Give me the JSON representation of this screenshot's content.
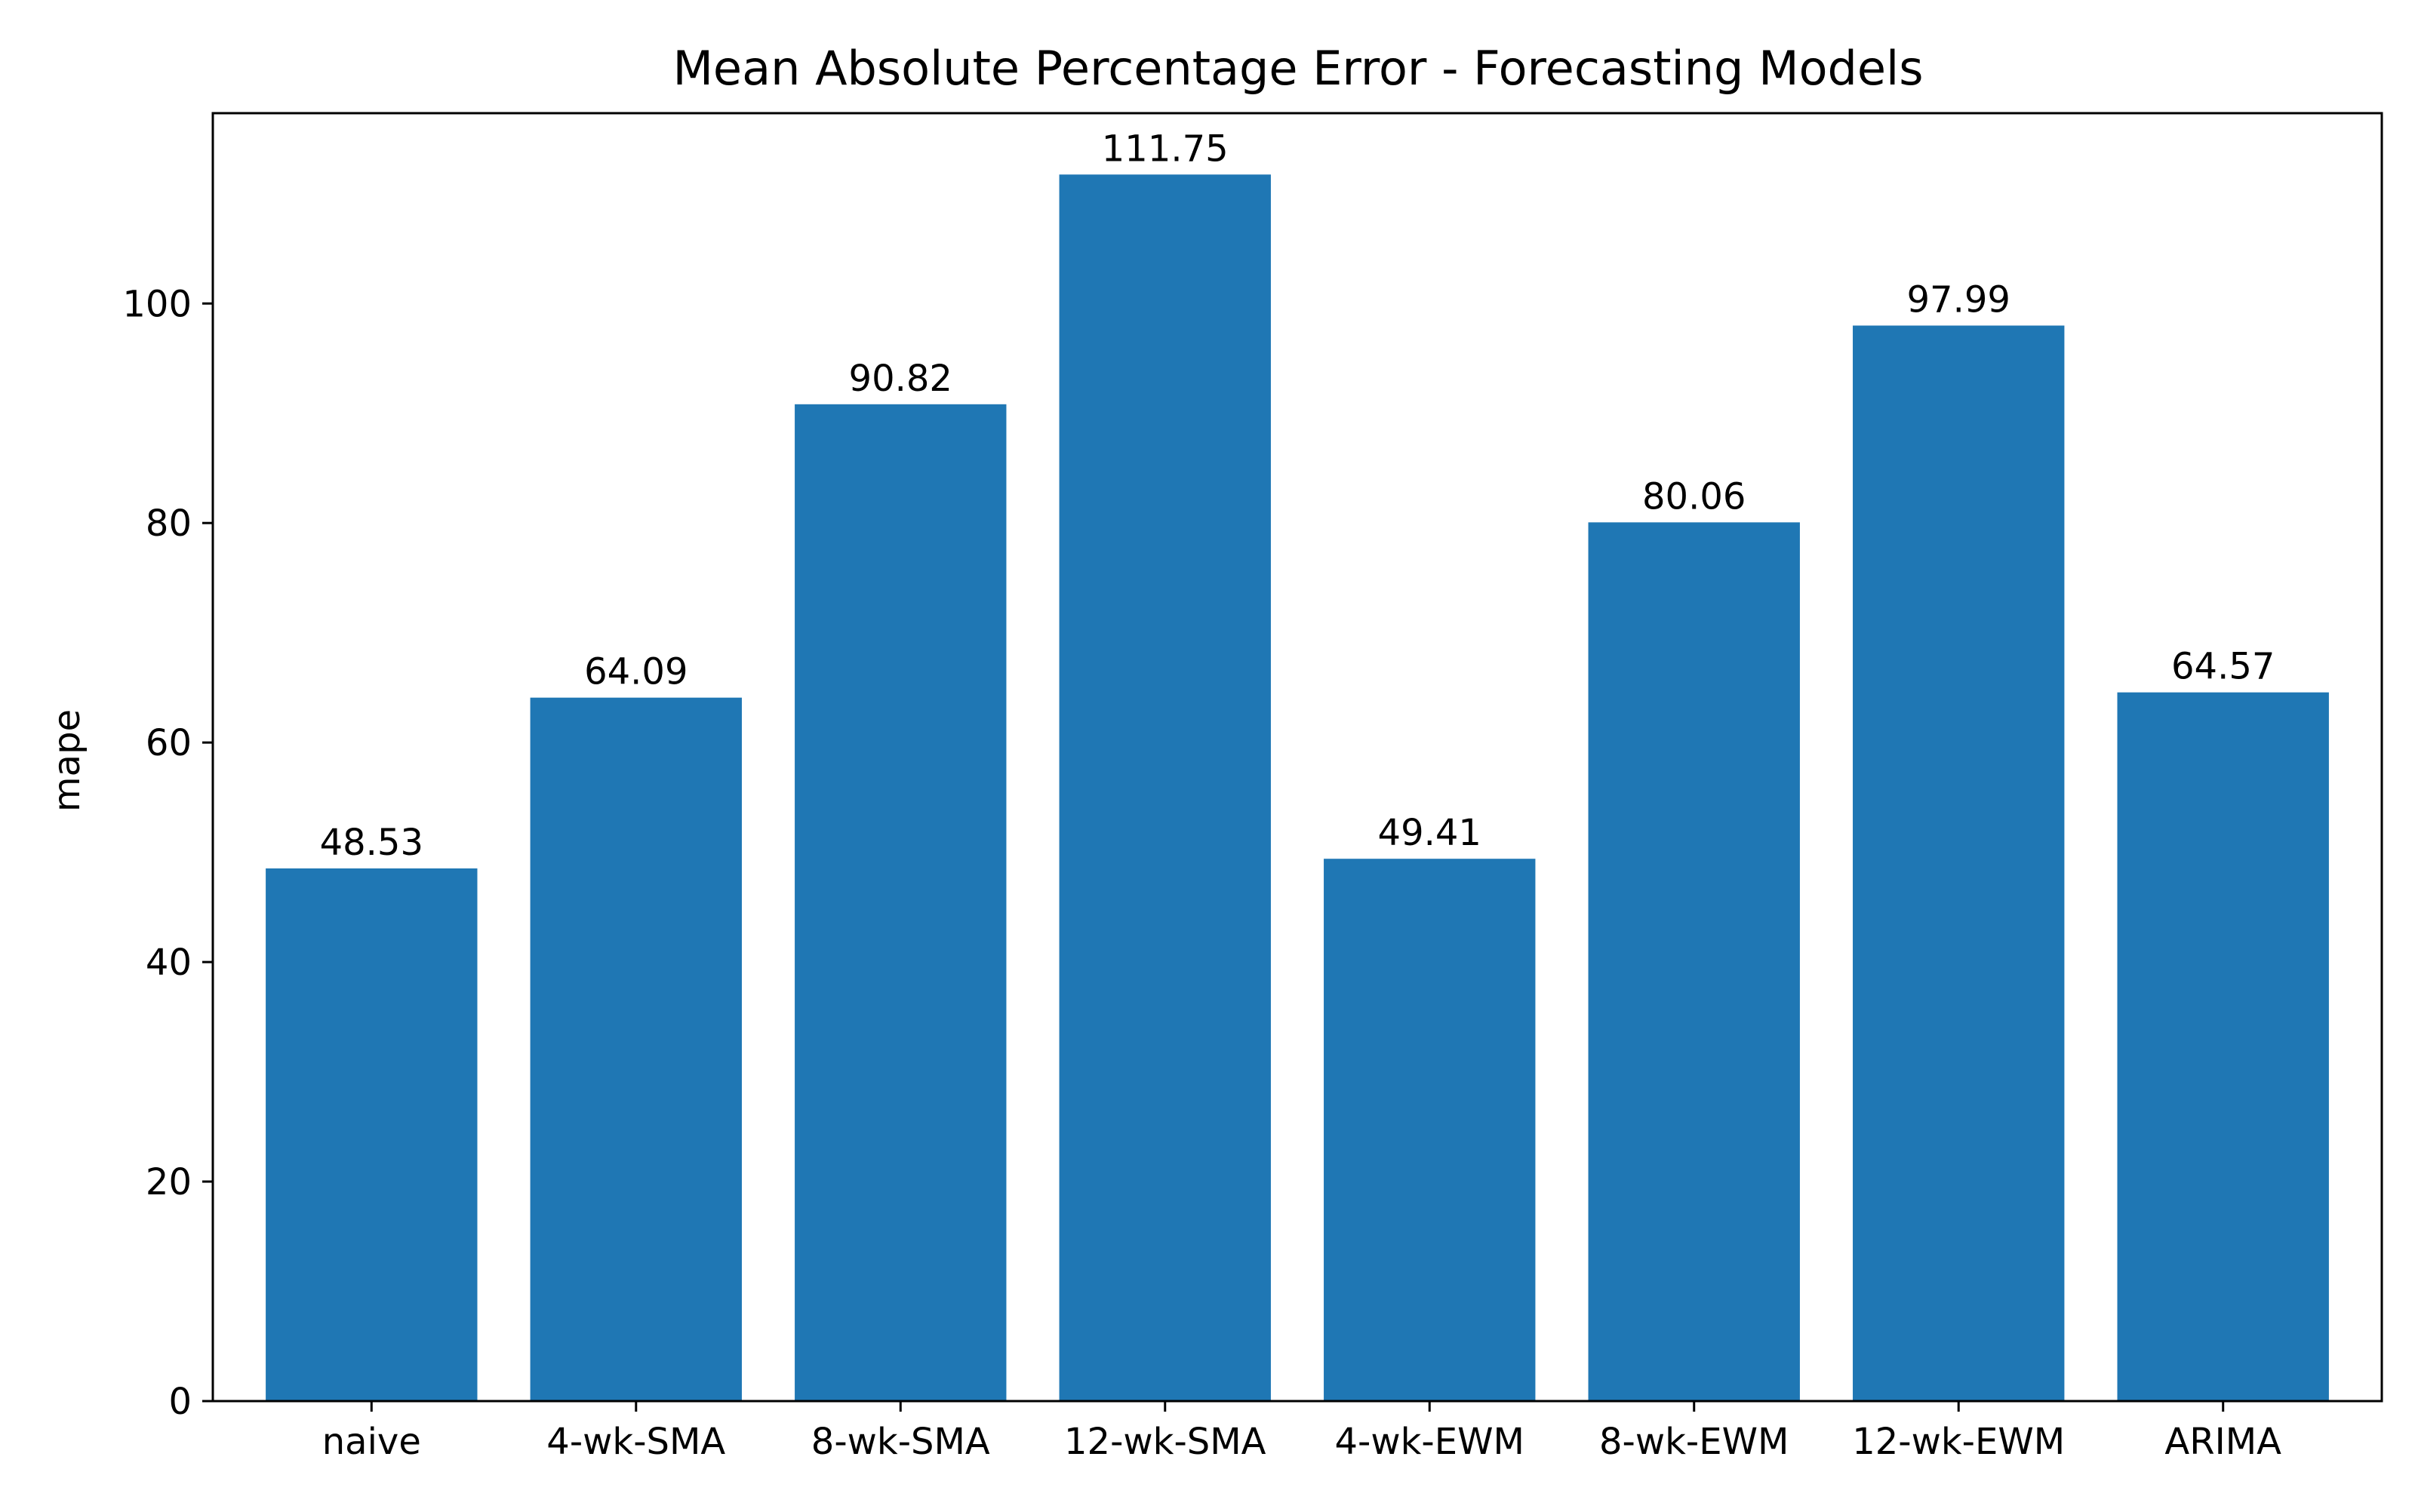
{
  "chart_data": {
    "type": "bar",
    "title": "Mean Absolute Percentage Error - Forecasting Models",
    "xlabel": "",
    "ylabel": "mape",
    "categories": [
      "naive",
      "4-wk-SMA",
      "8-wk-SMA",
      "12-wk-SMA",
      "4-wk-EWM",
      "8-wk-EWM",
      "12-wk-EWM",
      "ARIMA"
    ],
    "values": [
      48.53,
      64.09,
      90.82,
      111.75,
      49.41,
      80.06,
      97.99,
      64.57
    ],
    "data_labels": [
      "48.53",
      "64.09",
      "90.82",
      "111.75",
      "49.41",
      "80.06",
      "97.99",
      "64.57"
    ],
    "ylim": [
      0,
      117.34
    ],
    "yticks": [
      0,
      20,
      40,
      60,
      80,
      100
    ],
    "ytick_labels": [
      "0",
      "20",
      "40",
      "60",
      "80",
      "100"
    ],
    "grid": false,
    "legend": "none",
    "bar_color": "#1f77b4"
  }
}
